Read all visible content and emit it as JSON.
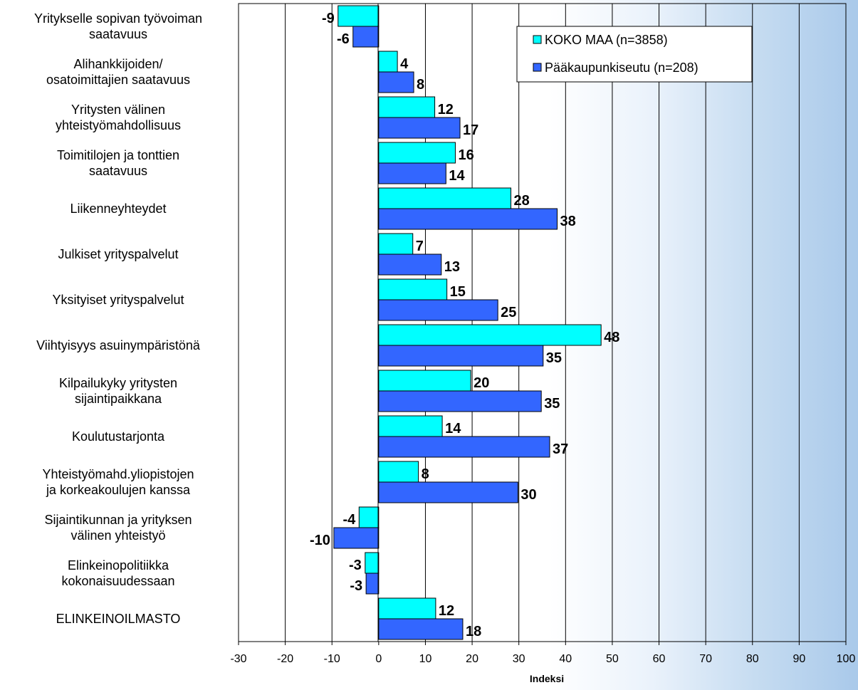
{
  "chart_data": {
    "type": "bar",
    "orientation": "horizontal",
    "categories": [
      [
        "Yritykselle sopivan työvoiman",
        "saatavuus"
      ],
      [
        "Alihankkijoiden/",
        "osatoimittajien saatavuus"
      ],
      [
        "Yritysten välinen",
        "yhteistyömahdollisuus"
      ],
      [
        "Toimitilojen ja tonttien",
        "saatavuus"
      ],
      [
        "Liikenneyhteydet"
      ],
      [
        "Julkiset yrityspalvelut"
      ],
      [
        "Yksityiset yrityspalvelut"
      ],
      [
        "Viihtyisyys asuinympäristönä"
      ],
      [
        "Kilpailukyky yritysten",
        "sijaintipaikkana"
      ],
      [
        "Koulutustarjonta"
      ],
      [
        "Yhteistyömahd.yliopistojen",
        "ja korkeakoulujen kanssa"
      ],
      [
        "Sijaintikunnan ja yrityksen",
        "välinen yhteistyö"
      ],
      [
        "Elinkeinopolitiikka",
        "kokonaisuudessaan"
      ],
      [
        "ELINKEINOILMASTO"
      ]
    ],
    "series": [
      {
        "name": "KOKO MAA (n=3858)",
        "color": "#00ffff",
        "values": [
          -9,
          4,
          12,
          16,
          28,
          7,
          15,
          48,
          20,
          14,
          8,
          -4,
          -3,
          12
        ],
        "bar_values": [
          -8.7,
          4.0,
          12.0,
          16.4,
          28.3,
          7.3,
          14.6,
          47.6,
          19.7,
          13.6,
          8.5,
          -4.2,
          -2.9,
          12.2
        ]
      },
      {
        "name": "Pääkaupunkiseutu (n=208)",
        "color": "#3366ff",
        "values": [
          -6,
          8,
          17,
          14,
          38,
          13,
          25,
          35,
          35,
          37,
          30,
          -10,
          -3,
          18
        ],
        "bar_values": [
          -5.5,
          7.5,
          17.4,
          14.4,
          38.2,
          13.4,
          25.5,
          35.2,
          34.8,
          36.6,
          29.8,
          -9.6,
          -2.7,
          18.0
        ]
      }
    ],
    "xlabel": "Indeksi",
    "xlim": [
      -30,
      100
    ],
    "xticks": [
      "-30",
      "-20",
      "-10",
      "0",
      "10",
      "20",
      "30",
      "40",
      "50",
      "60",
      "70",
      "80",
      "90",
      "100"
    ],
    "grid": "vertical",
    "legend_position": "top-right"
  }
}
